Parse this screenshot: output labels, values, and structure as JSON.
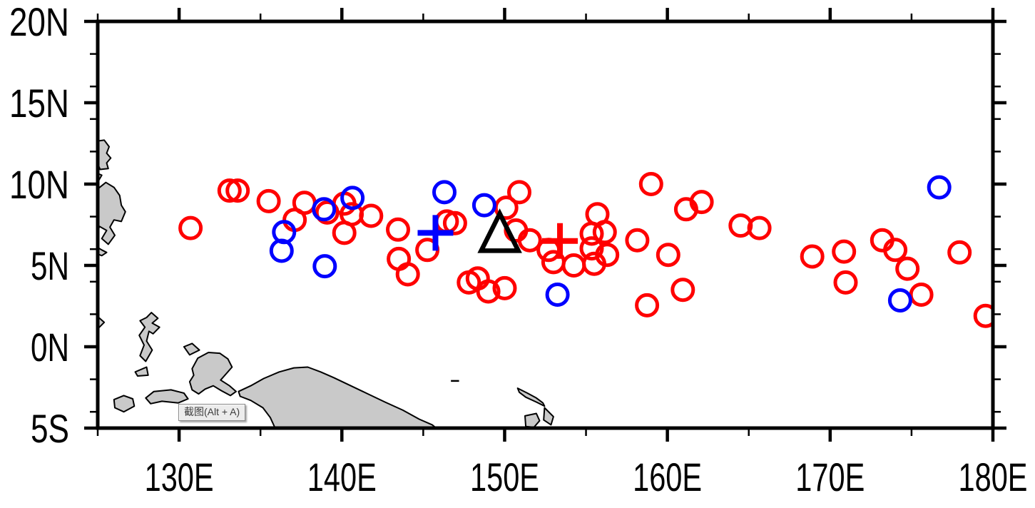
{
  "tooltip": {
    "text": "截图(Alt + A)"
  },
  "chart_data": {
    "type": "scatter",
    "subtype": "lat-lon-map",
    "title": "",
    "xlabel": "",
    "ylabel": "",
    "grid": false,
    "legend_position": "none",
    "x_axis": {
      "range": [
        125,
        180
      ],
      "major": [
        {
          "value": 130,
          "label": "130E"
        },
        {
          "value": 140,
          "label": "140E"
        },
        {
          "value": 150,
          "label": "150E"
        },
        {
          "value": 160,
          "label": "160E"
        },
        {
          "value": 170,
          "label": "170E"
        },
        {
          "value": 180,
          "label": "180E"
        }
      ],
      "minor": [
        125,
        135,
        145,
        155,
        165,
        175
      ]
    },
    "y_axis": {
      "range": [
        -5,
        20
      ],
      "major": [
        {
          "value": 20,
          "label": "20N"
        },
        {
          "value": 15,
          "label": "15N"
        },
        {
          "value": 10,
          "label": "10N"
        },
        {
          "value": 5,
          "label": "5N"
        },
        {
          "value": 0,
          "label": "0N"
        },
        {
          "value": -5,
          "label": "5S"
        }
      ],
      "minor": [
        18,
        16,
        14,
        12,
        8,
        6,
        4,
        2,
        -2,
        -4
      ]
    },
    "colors": {
      "red": "#ff0000",
      "blue": "#0000ff",
      "black": "#000000",
      "land_fill": "#c9c9c9",
      "land_stroke": "#000000",
      "background": "#ffffff"
    },
    "series": [
      {
        "name": "red-genesis-locations",
        "marker": "open-circle",
        "color": "#ff0000",
        "points": [
          [
            130.7,
            7.3
          ],
          [
            133.1,
            9.6
          ],
          [
            133.6,
            9.6
          ],
          [
            135.5,
            8.95
          ],
          [
            137.7,
            8.85
          ],
          [
            137.1,
            7.8
          ],
          [
            139.1,
            8.25
          ],
          [
            140.15,
            8.8
          ],
          [
            140.6,
            8.15
          ],
          [
            141.8,
            8.05
          ],
          [
            140.15,
            7.0
          ],
          [
            143.45,
            7.2
          ],
          [
            143.5,
            5.4
          ],
          [
            144.05,
            4.45
          ],
          [
            145.25,
            5.95
          ],
          [
            146.45,
            7.7
          ],
          [
            146.95,
            7.6
          ],
          [
            150.1,
            8.55
          ],
          [
            150.9,
            9.5
          ],
          [
            150.7,
            7.15
          ],
          [
            147.8,
            3.95
          ],
          [
            148.35,
            4.2
          ],
          [
            149.0,
            3.4
          ],
          [
            150.0,
            3.6
          ],
          [
            151.55,
            6.55
          ],
          [
            152.7,
            5.95
          ],
          [
            153.0,
            5.2
          ],
          [
            154.25,
            5.0
          ],
          [
            155.7,
            8.15
          ],
          [
            155.35,
            6.95
          ],
          [
            156.15,
            7.05
          ],
          [
            155.35,
            6.05
          ],
          [
            156.3,
            5.65
          ],
          [
            155.5,
            5.1
          ],
          [
            158.15,
            6.55
          ],
          [
            159.0,
            10.0
          ],
          [
            160.05,
            5.65
          ],
          [
            161.15,
            8.45
          ],
          [
            162.1,
            8.9
          ],
          [
            164.5,
            7.45
          ],
          [
            165.65,
            7.3
          ],
          [
            160.95,
            3.5
          ],
          [
            158.75,
            2.55
          ],
          [
            168.9,
            5.55
          ],
          [
            170.85,
            5.85
          ],
          [
            170.95,
            3.95
          ],
          [
            173.2,
            6.55
          ],
          [
            174.0,
            5.95
          ],
          [
            174.75,
            4.8
          ],
          [
            175.6,
            3.2
          ],
          [
            177.95,
            5.8
          ],
          [
            179.55,
            1.9
          ]
        ]
      },
      {
        "name": "blue-genesis-locations",
        "marker": "open-circle",
        "color": "#0000ff",
        "points": [
          [
            138.9,
            8.45
          ],
          [
            136.45,
            7.05
          ],
          [
            136.3,
            5.9
          ],
          [
            138.95,
            4.95
          ],
          [
            140.65,
            9.15
          ],
          [
            146.3,
            9.5
          ],
          [
            148.75,
            8.7
          ],
          [
            153.25,
            3.2
          ],
          [
            176.7,
            9.8
          ],
          [
            174.3,
            2.85
          ]
        ]
      },
      {
        "name": "blue-mean-position",
        "marker": "plus",
        "color": "#0000ff",
        "points": [
          [
            145.75,
            7.0
          ]
        ]
      },
      {
        "name": "red-mean-position",
        "marker": "plus",
        "color": "#ff0000",
        "points": [
          [
            153.4,
            6.5
          ]
        ]
      },
      {
        "name": "reference-position",
        "marker": "open-triangle",
        "color": "#000000",
        "points": [
          [
            149.7,
            7.0
          ]
        ]
      }
    ],
    "map": {
      "island_dash": [
        [
          146.7,
          -2.1
        ],
        [
          147.2,
          -2.1
        ]
      ],
      "land_polygons": [
        [
          [
            125.0,
            12.65
          ],
          [
            125.4,
            12.7
          ],
          [
            125.7,
            12.3
          ],
          [
            125.55,
            11.9
          ],
          [
            125.8,
            11.6
          ],
          [
            125.55,
            11.3
          ],
          [
            125.65,
            10.95
          ],
          [
            125.15,
            10.9
          ],
          [
            125.0,
            11.25
          ]
        ],
        [
          [
            125.0,
            10.65
          ],
          [
            125.25,
            10.55
          ],
          [
            125.05,
            10.2
          ]
        ],
        [
          [
            125.0,
            9.7
          ],
          [
            125.5,
            10.1
          ],
          [
            126.0,
            9.8
          ],
          [
            126.35,
            9.3
          ],
          [
            126.45,
            8.7
          ],
          [
            126.7,
            8.3
          ],
          [
            126.45,
            7.7
          ],
          [
            126.0,
            7.8
          ],
          [
            125.75,
            7.35
          ],
          [
            126.05,
            6.85
          ],
          [
            125.65,
            6.3
          ],
          [
            125.25,
            6.65
          ],
          [
            125.55,
            7.15
          ],
          [
            125.1,
            7.4
          ],
          [
            125.0,
            7.0
          ]
        ],
        [
          [
            125.0,
            6.1
          ],
          [
            125.25,
            5.95
          ],
          [
            125.55,
            5.8
          ],
          [
            125.25,
            5.6
          ],
          [
            125.0,
            5.7
          ]
        ],
        [
          [
            125.0,
            1.85
          ],
          [
            125.4,
            1.5
          ],
          [
            125.05,
            1.15
          ],
          [
            124.8,
            1.35
          ],
          [
            124.75,
            1.7
          ]
        ],
        [
          [
            128.3,
            2.1
          ],
          [
            128.7,
            1.75
          ],
          [
            128.35,
            1.45
          ],
          [
            128.8,
            1.2
          ],
          [
            128.4,
            0.8
          ],
          [
            128.15,
            0.95
          ],
          [
            128.0,
            0.35
          ],
          [
            128.35,
            -0.2
          ],
          [
            127.95,
            -0.9
          ],
          [
            127.6,
            -0.55
          ],
          [
            127.85,
            0.1
          ],
          [
            127.55,
            0.7
          ],
          [
            127.9,
            1.2
          ],
          [
            127.6,
            1.6
          ],
          [
            128.0,
            1.8
          ]
        ],
        [
          [
            130.3,
            0.0
          ],
          [
            130.8,
            0.2
          ],
          [
            131.25,
            -0.2
          ],
          [
            130.65,
            -0.5
          ]
        ],
        [
          [
            127.3,
            -1.55
          ],
          [
            128.0,
            -1.25
          ],
          [
            128.1,
            -1.75
          ],
          [
            127.45,
            -1.8
          ]
        ],
        [
          [
            126.0,
            -3.25
          ],
          [
            126.6,
            -3.0
          ],
          [
            127.15,
            -3.2
          ],
          [
            127.25,
            -3.65
          ],
          [
            126.6,
            -4.0
          ],
          [
            126.05,
            -3.75
          ]
        ],
        [
          [
            127.95,
            -3.15
          ],
          [
            128.45,
            -2.75
          ],
          [
            129.5,
            -2.65
          ],
          [
            130.3,
            -2.85
          ],
          [
            130.55,
            -3.2
          ],
          [
            129.95,
            -3.45
          ],
          [
            128.95,
            -3.35
          ],
          [
            128.25,
            -3.5
          ]
        ],
        [
          [
            130.8,
            -1.35
          ],
          [
            131.15,
            -0.7
          ],
          [
            131.8,
            -0.35
          ],
          [
            132.5,
            -0.4
          ],
          [
            133.0,
            -0.75
          ],
          [
            133.25,
            -1.25
          ],
          [
            132.9,
            -1.65
          ],
          [
            132.55,
            -2.05
          ],
          [
            133.1,
            -2.4
          ],
          [
            133.5,
            -2.75
          ],
          [
            133.15,
            -3.0
          ],
          [
            132.6,
            -2.7
          ],
          [
            132.1,
            -2.4
          ],
          [
            131.6,
            -2.6
          ],
          [
            131.2,
            -2.9
          ],
          [
            130.8,
            -2.65
          ],
          [
            130.65,
            -2.15
          ],
          [
            130.9,
            -1.75
          ]
        ],
        [
          [
            133.65,
            -2.75
          ],
          [
            134.4,
            -2.4
          ],
          [
            135.2,
            -1.95
          ],
          [
            136.15,
            -1.55
          ],
          [
            137.05,
            -1.3
          ],
          [
            137.9,
            -1.25
          ],
          [
            138.7,
            -1.55
          ],
          [
            139.5,
            -1.9
          ],
          [
            140.55,
            -2.4
          ],
          [
            141.6,
            -2.9
          ],
          [
            142.65,
            -3.4
          ],
          [
            143.75,
            -3.9
          ],
          [
            144.75,
            -4.45
          ],
          [
            145.55,
            -4.8
          ],
          [
            145.8,
            -5.0
          ],
          [
            135.9,
            -5.0
          ],
          [
            135.6,
            -4.35
          ],
          [
            135.15,
            -3.75
          ],
          [
            134.4,
            -3.3
          ],
          [
            133.75,
            -3.05
          ]
        ],
        [
          [
            150.8,
            -2.55
          ],
          [
            151.4,
            -2.85
          ],
          [
            151.95,
            -3.15
          ],
          [
            152.35,
            -3.45
          ],
          [
            152.45,
            -3.65
          ],
          [
            151.95,
            -3.4
          ],
          [
            151.3,
            -3.1
          ],
          [
            150.9,
            -2.8
          ]
        ],
        [
          [
            151.25,
            -4.25
          ],
          [
            151.95,
            -4.1
          ],
          [
            152.15,
            -4.55
          ],
          [
            151.8,
            -4.95
          ],
          [
            151.3,
            -4.9
          ]
        ],
        [
          [
            152.45,
            -3.75
          ],
          [
            153.0,
            -4.3
          ],
          [
            152.85,
            -4.8
          ],
          [
            152.4,
            -4.5
          ]
        ]
      ]
    }
  }
}
